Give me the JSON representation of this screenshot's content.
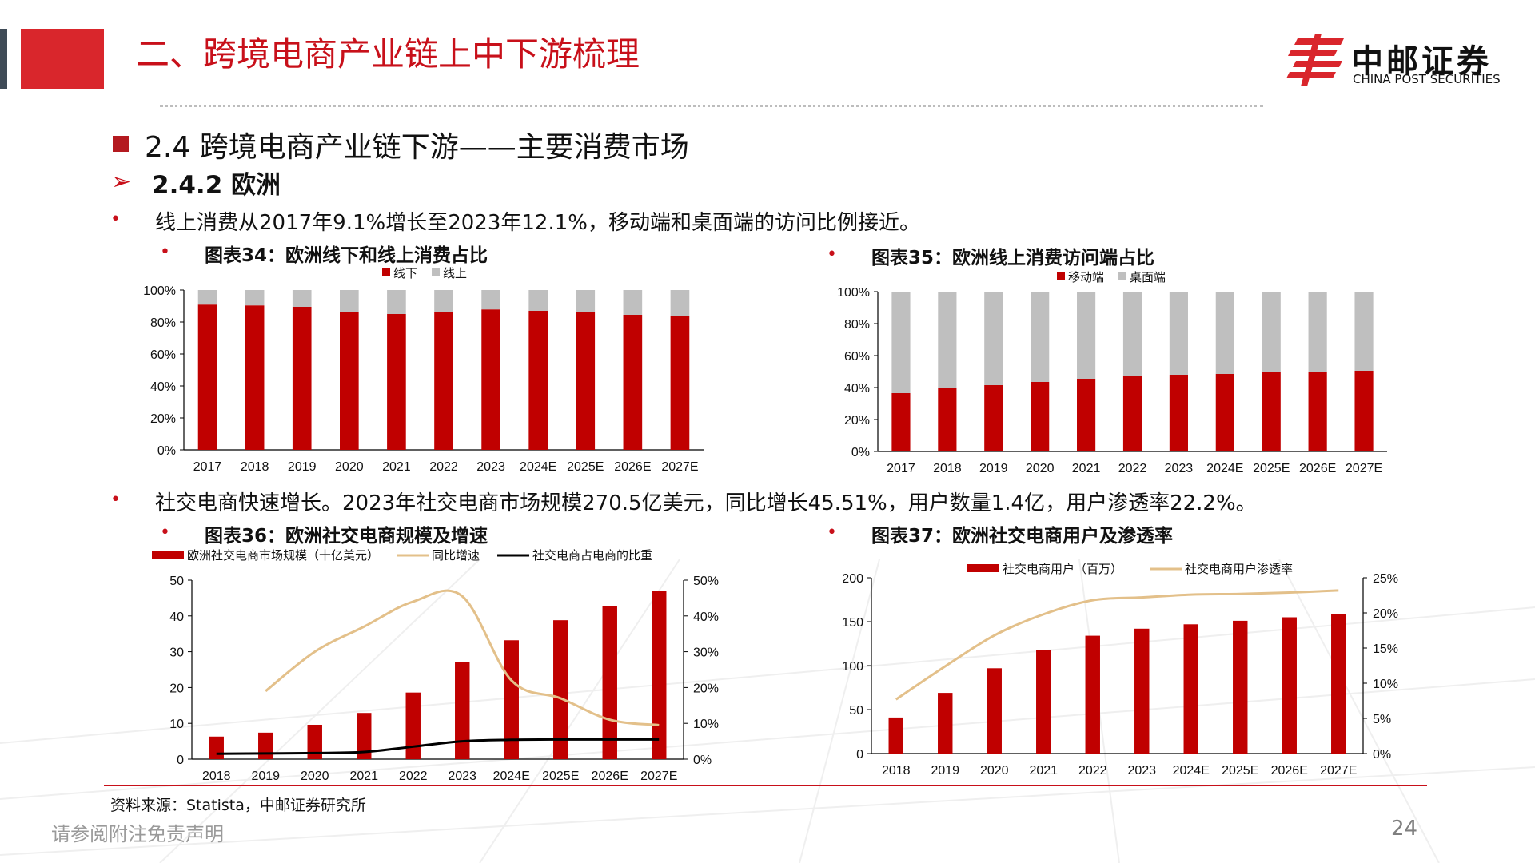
{
  "header": {
    "title": "二、跨境电商产业链上中下游梳理",
    "logo_cn": "中邮证券",
    "logo_en": "CHINA POST SECURITIES",
    "accent_color": "#c8101a"
  },
  "section": {
    "title": "2.4 跨境电商产业链下游——主要消费市场",
    "subtitle": "2.4.2 欧洲",
    "arrow": "➢"
  },
  "bullets": {
    "b1": "线上消费从2017年9.1%增长至2023年12.1%，移动端和桌面端的访问比例接近。",
    "b2": "社交电商快速增长。2023年社交电商市场规模270.5亿美元，同比增长45.51%，用户数量1.4亿，用户渗透率22.2%。",
    "dot": "•"
  },
  "charts": {
    "c34_title": "图表34：欧洲线下和线上消费占比",
    "c35_title": "图表35：欧洲线上消费访问端占比",
    "c36_title": "图表36：欧洲社交电商规模及增速",
    "c37_title": "图表37：欧洲社交电商用户及渗透率"
  },
  "footer": {
    "source": "资料来源：Statista，中邮证券研究所",
    "disclaimer": "请参阅附注免责声明",
    "page": "24"
  },
  "chart_data": [
    {
      "id": "c34",
      "type": "bar",
      "stacked": true,
      "categories": [
        "2017",
        "2018",
        "2019",
        "2020",
        "2021",
        "2022",
        "2023",
        "2024E",
        "2025E",
        "2026E",
        "2027E"
      ],
      "series": [
        {
          "name": "线下",
          "color": "#c00000",
          "values": [
            90.9,
            90.4,
            89.5,
            86.0,
            85.0,
            86.4,
            87.9,
            87.0,
            86.2,
            84.5,
            83.8
          ]
        },
        {
          "name": "线上",
          "color": "#bfbfbf",
          "values": [
            9.1,
            9.6,
            10.5,
            14.0,
            15.0,
            13.6,
            12.1,
            13.0,
            13.8,
            15.5,
            16.2
          ]
        }
      ],
      "ylim": [
        0,
        100
      ],
      "yticks": [
        "0%",
        "20%",
        "40%",
        "60%",
        "80%",
        "100%"
      ]
    },
    {
      "id": "c35",
      "type": "bar",
      "stacked": true,
      "categories": [
        "2017",
        "2018",
        "2019",
        "2020",
        "2021",
        "2022",
        "2023",
        "2024E",
        "2025E",
        "2026E",
        "2027E"
      ],
      "series": [
        {
          "name": "移动端",
          "color": "#c00000",
          "values": [
            36.5,
            39.5,
            41.5,
            43.5,
            45.5,
            47.0,
            48.0,
            48.5,
            49.5,
            50.0,
            50.5
          ]
        },
        {
          "name": "桌面端",
          "color": "#bfbfbf",
          "values": [
            63.5,
            60.5,
            58.5,
            56.5,
            54.5,
            53.0,
            52.0,
            51.5,
            50.5,
            50.0,
            49.5
          ]
        }
      ],
      "ylim": [
        0,
        100
      ],
      "yticks": [
        "0%",
        "20%",
        "40%",
        "60%",
        "80%",
        "100%"
      ]
    },
    {
      "id": "c36",
      "type": "bar",
      "categories": [
        "2018",
        "2019",
        "2020",
        "2021",
        "2022",
        "2023",
        "2024E",
        "2025E",
        "2026E",
        "2027E"
      ],
      "series": [
        {
          "name": "欧洲社交电商市场规模（十亿美元）",
          "color": "#c00000",
          "kind": "bar",
          "axis": "left",
          "values": [
            6.3,
            7.4,
            9.6,
            12.9,
            18.6,
            27.1,
            33.2,
            38.8,
            42.8,
            46.9
          ]
        },
        {
          "name": "同比增速",
          "color": "#e3c08a",
          "kind": "line",
          "axis": "right",
          "values": [
            null,
            19,
            30,
            37,
            44,
            45.5,
            22,
            17,
            11,
            9.5
          ]
        },
        {
          "name": "社交电商占电商的比重",
          "color": "#000000",
          "kind": "line",
          "axis": "right",
          "values": [
            1.5,
            1.6,
            1.7,
            2.0,
            3.5,
            5.0,
            5.4,
            5.5,
            5.5,
            5.5
          ]
        }
      ],
      "ylim": [
        0,
        50
      ],
      "y2lim": [
        0,
        50
      ],
      "yticks": [
        "0",
        "10",
        "20",
        "30",
        "40",
        "50"
      ],
      "y2ticks": [
        "0%",
        "10%",
        "20%",
        "30%",
        "40%",
        "50%"
      ]
    },
    {
      "id": "c37",
      "type": "bar",
      "categories": [
        "2018",
        "2019",
        "2020",
        "2021",
        "2022",
        "2023",
        "2024E",
        "2025E",
        "2026E",
        "2027E"
      ],
      "series": [
        {
          "name": "社交电商用户（百万）",
          "color": "#c00000",
          "kind": "bar",
          "axis": "left",
          "values": [
            41,
            69,
            97,
            118,
            134,
            142,
            147,
            151,
            155,
            159
          ]
        },
        {
          "name": "社交电商用户渗透率",
          "color": "#e3c08a",
          "kind": "line",
          "axis": "right",
          "values": [
            7.7,
            12.4,
            16.8,
            19.8,
            21.8,
            22.2,
            22.6,
            22.7,
            22.9,
            23.2
          ]
        }
      ],
      "ylim": [
        0,
        200
      ],
      "y2lim": [
        0,
        25
      ],
      "yticks": [
        "0",
        "50",
        "100",
        "150",
        "200"
      ],
      "y2ticks": [
        "0%",
        "5%",
        "10%",
        "15%",
        "20%",
        "25%"
      ]
    }
  ]
}
